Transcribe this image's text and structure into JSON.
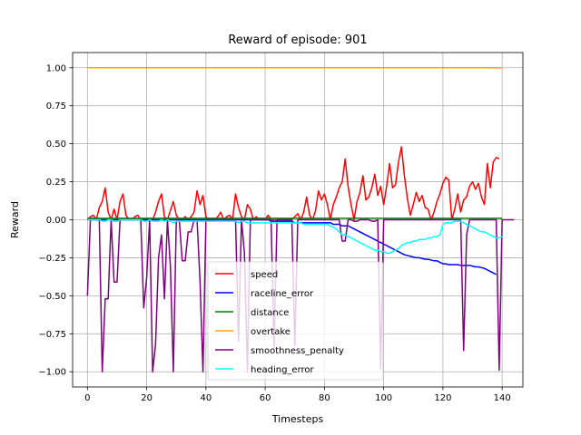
{
  "chart_data": {
    "type": "line",
    "title": "Reward of episode: 901",
    "xlabel": "Timesteps",
    "ylabel": "Reward",
    "xlim": [
      -5,
      147
    ],
    "ylim": [
      -1.1,
      1.1
    ],
    "xticks": [
      0,
      20,
      40,
      60,
      80,
      100,
      120,
      140
    ],
    "yticks": [
      -1.0,
      -0.75,
      -0.5,
      -0.25,
      0.0,
      0.25,
      0.5,
      0.75,
      1.0
    ],
    "ytick_labels": [
      "−1.00",
      "−0.75",
      "−0.50",
      "−0.25",
      "0.00",
      "0.25",
      "0.50",
      "0.75",
      "1.00"
    ],
    "grid": true,
    "legend_position": "lower-center",
    "series": [
      {
        "name": "speed",
        "color": "#ff0000",
        "values": [
          0.0,
          0.02,
          0.03,
          0.0,
          0.08,
          0.12,
          0.21,
          0.05,
          0.0,
          0.07,
          0.0,
          0.12,
          0.17,
          0.03,
          0.0,
          0.0,
          0.02,
          0.03,
          0.0,
          0.0,
          0.0,
          0.0,
          0.0,
          0.05,
          0.12,
          0.17,
          0.02,
          0.0,
          0.06,
          0.12,
          0.03,
          0.0,
          0.0,
          0.02,
          0.0,
          0.02,
          0.05,
          0.19,
          0.1,
          0.16,
          0.02,
          0.0,
          0.0,
          0.0,
          0.02,
          0.05,
          0.0,
          0.02,
          0.03,
          0.0,
          0.17,
          0.08,
          0.02,
          0.0,
          0.1,
          0.07,
          0.0,
          0.02,
          0.0,
          0.0,
          0.0,
          0.03,
          0.0,
          0.0,
          0.0,
          0.0,
          0.0,
          0.0,
          0.0,
          0.0,
          0.02,
          0.04,
          0.0,
          0.05,
          0.15,
          0.03,
          0.0,
          0.06,
          0.19,
          0.13,
          0.17,
          0.1,
          0.0,
          0.1,
          0.15,
          0.21,
          0.25,
          0.4,
          0.22,
          0.1,
          0.0,
          0.12,
          0.18,
          0.29,
          0.13,
          0.15,
          0.21,
          0.3,
          0.16,
          0.22,
          0.1,
          0.22,
          0.37,
          0.21,
          0.23,
          0.38,
          0.48,
          0.29,
          0.14,
          0.03,
          0.1,
          0.18,
          0.12,
          0.16,
          0.08,
          0.07,
          0.0,
          0.05,
          0.12,
          0.17,
          0.24,
          0.28,
          0.26,
          0.0,
          0.07,
          0.17,
          0.05,
          0.13,
          0.15,
          0.22,
          0.25,
          0.2,
          0.24,
          0.15,
          0.1,
          0.37,
          0.21,
          0.38,
          0.41,
          0.4
        ]
      },
      {
        "name": "raceline_error",
        "color": "#0000ff",
        "values": [
          0.0,
          0.0,
          0.0,
          0.0,
          0.0,
          0.0,
          0.0,
          0.0,
          0.0,
          0.0,
          0.0,
          0.0,
          0.0,
          0.0,
          0.0,
          0.0,
          0.0,
          0.0,
          0.0,
          0.0,
          0.0,
          0.0,
          0.0,
          0.0,
          0.0,
          0.0,
          0.0,
          0.0,
          0.0,
          0.0,
          0.0,
          0.0,
          0.0,
          0.0,
          0.0,
          0.0,
          0.0,
          0.0,
          0.0,
          0.0,
          0.0,
          0.0,
          0.0,
          0.0,
          0.0,
          0.0,
          0.0,
          0.0,
          0.0,
          0.0,
          0.0,
          0.0,
          0.0,
          0.0,
          0.0,
          0.0,
          0.0,
          0.0,
          0.0,
          0.0,
          0.0,
          0.0,
          -0.01,
          -0.01,
          -0.01,
          -0.01,
          -0.01,
          -0.01,
          -0.01,
          -0.01,
          -0.02,
          -0.02,
          -0.02,
          -0.02,
          -0.02,
          -0.02,
          -0.02,
          -0.02,
          -0.02,
          -0.02,
          -0.02,
          -0.02,
          -0.02,
          -0.03,
          -0.03,
          -0.03,
          -0.04,
          -0.04,
          -0.04,
          -0.05,
          -0.06,
          -0.07,
          -0.08,
          -0.09,
          -0.1,
          -0.11,
          -0.12,
          -0.13,
          -0.14,
          -0.15,
          -0.16,
          -0.17,
          -0.18,
          -0.19,
          -0.2,
          -0.21,
          -0.22,
          -0.23,
          -0.235,
          -0.24,
          -0.245,
          -0.25,
          -0.25,
          -0.255,
          -0.26,
          -0.26,
          -0.265,
          -0.27,
          -0.27,
          -0.28,
          -0.29,
          -0.29,
          -0.295,
          -0.295,
          -0.295,
          -0.295,
          -0.3,
          -0.3,
          -0.3,
          -0.3,
          -0.305,
          -0.31,
          -0.31,
          -0.315,
          -0.32,
          -0.33,
          -0.34,
          -0.35,
          -0.36
        ]
      },
      {
        "name": "distance",
        "color": "#008000",
        "values": [
          0.01,
          0.01,
          0.01,
          0.01,
          0.01,
          0.01,
          0.01,
          0.01,
          0.01,
          0.01,
          0.01,
          0.01,
          0.01,
          0.01,
          0.01,
          0.01,
          0.01,
          0.01,
          0.01,
          0.01,
          0.01,
          0.01,
          0.01,
          0.01,
          0.01,
          0.01,
          0.01,
          0.01,
          0.01,
          0.01,
          0.01,
          0.01,
          0.01,
          0.01,
          0.01,
          0.01,
          0.01,
          0.01,
          0.01,
          0.01,
          0.01,
          0.01,
          0.01,
          0.01,
          0.01,
          0.01,
          0.01,
          0.01,
          0.01,
          0.01,
          0.01,
          0.01,
          0.01,
          0.01,
          0.01,
          0.01,
          0.01,
          0.01,
          0.01,
          0.01,
          0.01,
          0.01,
          0.01,
          0.01,
          0.01,
          0.01,
          0.01,
          0.01,
          0.01,
          0.01,
          0.01,
          0.01,
          0.01,
          0.01,
          0.01,
          0.01,
          0.01,
          0.01,
          0.01,
          0.01,
          0.01,
          0.01,
          0.01,
          0.01,
          0.01,
          0.01,
          0.01,
          0.01,
          0.01,
          0.01,
          0.01,
          0.01,
          0.01,
          0.01,
          0.01,
          0.01,
          0.01,
          0.01,
          0.01,
          0.01,
          0.01,
          0.01,
          0.01,
          0.01,
          0.01,
          0.01,
          0.01,
          0.01,
          0.01,
          0.01,
          0.01,
          0.01,
          0.01,
          0.01,
          0.01,
          0.01,
          0.01,
          0.01,
          0.01,
          0.01,
          0.01,
          0.01,
          0.01,
          0.01,
          0.01,
          0.01,
          0.01,
          0.01,
          0.01,
          0.01,
          0.01,
          0.01,
          0.01,
          0.01,
          0.01,
          0.01,
          0.01,
          0.01,
          0.01,
          0.01,
          0.01
        ]
      },
      {
        "name": "overtake",
        "color": "#ffa500",
        "values": [
          1.0,
          1.0,
          1.0,
          1.0,
          1.0,
          1.0,
          1.0,
          1.0,
          1.0,
          1.0,
          1.0,
          1.0,
          1.0,
          1.0,
          1.0,
          1.0,
          1.0,
          1.0,
          1.0,
          1.0,
          1.0,
          1.0,
          1.0,
          1.0,
          1.0,
          1.0,
          1.0,
          1.0,
          1.0,
          1.0,
          1.0,
          1.0,
          1.0,
          1.0,
          1.0,
          1.0,
          1.0,
          1.0,
          1.0,
          1.0,
          1.0,
          1.0,
          1.0,
          1.0,
          1.0,
          1.0,
          1.0,
          1.0,
          1.0,
          1.0,
          1.0,
          1.0,
          1.0,
          1.0,
          1.0,
          1.0,
          1.0,
          1.0,
          1.0,
          1.0,
          1.0,
          1.0,
          1.0,
          1.0,
          1.0,
          1.0,
          1.0,
          1.0,
          1.0,
          1.0,
          1.0,
          1.0,
          1.0,
          1.0,
          1.0,
          1.0,
          1.0,
          1.0,
          1.0,
          1.0,
          1.0,
          1.0,
          1.0,
          1.0,
          1.0,
          1.0,
          1.0,
          1.0,
          1.0,
          1.0,
          1.0,
          1.0,
          1.0,
          1.0,
          1.0,
          1.0,
          1.0,
          1.0,
          1.0,
          1.0,
          1.0,
          1.0,
          1.0,
          1.0,
          1.0,
          1.0,
          1.0,
          1.0,
          1.0,
          1.0,
          1.0,
          1.0,
          1.0,
          1.0,
          1.0,
          1.0,
          1.0,
          1.0,
          1.0,
          1.0,
          1.0,
          1.0,
          1.0,
          1.0,
          1.0,
          1.0,
          1.0,
          1.0,
          1.0,
          1.0,
          1.0,
          1.0,
          1.0,
          1.0,
          1.0,
          1.0,
          1.0,
          1.0,
          1.0,
          1.0,
          1.0
        ]
      },
      {
        "name": "smoothness_penalty",
        "color": "#800080",
        "values": [
          -0.5,
          0.0,
          0.0,
          0.0,
          0.0,
          -1.0,
          -0.52,
          -0.52,
          0.0,
          -0.41,
          -0.41,
          0.0,
          0.0,
          0.0,
          0.0,
          0.0,
          0.0,
          0.0,
          0.0,
          -0.58,
          -0.38,
          0.0,
          -1.0,
          -0.82,
          -0.25,
          -0.1,
          -0.52,
          0.0,
          -0.3,
          -1.0,
          0.0,
          0.0,
          -0.27,
          -0.27,
          -0.08,
          -0.08,
          0.0,
          0.0,
          -0.4,
          -1.0,
          0.0,
          0.0,
          0.0,
          0.0,
          0.0,
          0.0,
          0.0,
          0.0,
          0.0,
          0.0,
          0.0,
          -0.8,
          0.0,
          -0.22,
          -1.0,
          0.0,
          0.0,
          0.0,
          0.0,
          0.0,
          0.0,
          0.0,
          0.0,
          -0.84,
          0.0,
          0.0,
          0.0,
          0.0,
          0.0,
          0.0,
          -0.83,
          0.0,
          0.0,
          0.0,
          0.0,
          0.0,
          0.0,
          0.0,
          0.0,
          0.0,
          0.0,
          0.0,
          0.0,
          0.0,
          0.0,
          0.0,
          -0.14,
          -0.14,
          0.0,
          0.0,
          -0.01,
          -0.01,
          0.0,
          0.0,
          0.0,
          0.0,
          -0.01,
          -0.01,
          0.0,
          -0.98,
          0.0,
          0.0,
          0.0,
          0.0,
          0.0,
          0.0,
          0.0,
          0.0,
          0.0,
          0.0,
          0.0,
          0.0,
          0.0,
          0.0,
          0.0,
          0.0,
          0.0,
          0.0,
          0.0,
          0.0,
          0.0,
          0.0,
          0.0,
          0.0,
          0.0,
          0.0,
          0.0,
          -0.86,
          -0.1,
          0.0,
          0.0,
          0.0,
          0.0,
          0.0,
          0.0,
          0.0,
          0.0,
          0.0,
          0.0,
          -0.99,
          0.0,
          0.0,
          0.0,
          0.0,
          0.0
        ]
      },
      {
        "name": "heading_error",
        "color": "#00ffff",
        "values": [
          0.0,
          0.0,
          0.0,
          0.0,
          0.0,
          -0.01,
          -0.01,
          0.0,
          0.0,
          -0.01,
          -0.01,
          0.0,
          0.0,
          0.0,
          0.0,
          0.0,
          0.0,
          0.0,
          0.0,
          -0.01,
          -0.01,
          0.0,
          -0.01,
          -0.01,
          -0.01,
          0.0,
          -0.01,
          0.0,
          -0.01,
          -0.02,
          -0.01,
          -0.01,
          -0.01,
          -0.01,
          -0.01,
          -0.01,
          -0.01,
          -0.01,
          -0.01,
          -0.01,
          -0.01,
          -0.01,
          -0.01,
          -0.01,
          -0.01,
          -0.01,
          -0.01,
          -0.01,
          -0.01,
          -0.01,
          -0.01,
          -0.02,
          -0.01,
          -0.01,
          -0.02,
          -0.02,
          -0.02,
          -0.02,
          -0.02,
          -0.02,
          -0.02,
          -0.02,
          -0.02,
          -0.02,
          -0.02,
          -0.02,
          -0.02,
          -0.02,
          -0.02,
          -0.02,
          -0.02,
          -0.02,
          -0.02,
          -0.03,
          -0.03,
          -0.03,
          -0.03,
          -0.03,
          -0.03,
          -0.03,
          -0.03,
          -0.03,
          -0.04,
          -0.05,
          -0.06,
          -0.08,
          -0.1,
          -0.1,
          -0.11,
          -0.12,
          -0.13,
          -0.14,
          -0.15,
          -0.16,
          -0.17,
          -0.18,
          -0.19,
          -0.2,
          -0.2,
          -0.21,
          -0.21,
          -0.22,
          -0.22,
          -0.21,
          -0.2,
          -0.19,
          -0.17,
          -0.16,
          -0.15,
          -0.15,
          -0.14,
          -0.14,
          -0.13,
          -0.13,
          -0.13,
          -0.12,
          -0.12,
          -0.11,
          -0.11,
          -0.1,
          -0.03,
          -0.02,
          -0.02,
          -0.02,
          -0.01,
          -0.01,
          -0.01,
          -0.02,
          -0.03,
          -0.04,
          -0.05,
          -0.06,
          -0.07,
          -0.08,
          -0.08,
          -0.09,
          -0.1,
          -0.11,
          -0.12,
          -0.12,
          -0.11
        ]
      }
    ]
  }
}
